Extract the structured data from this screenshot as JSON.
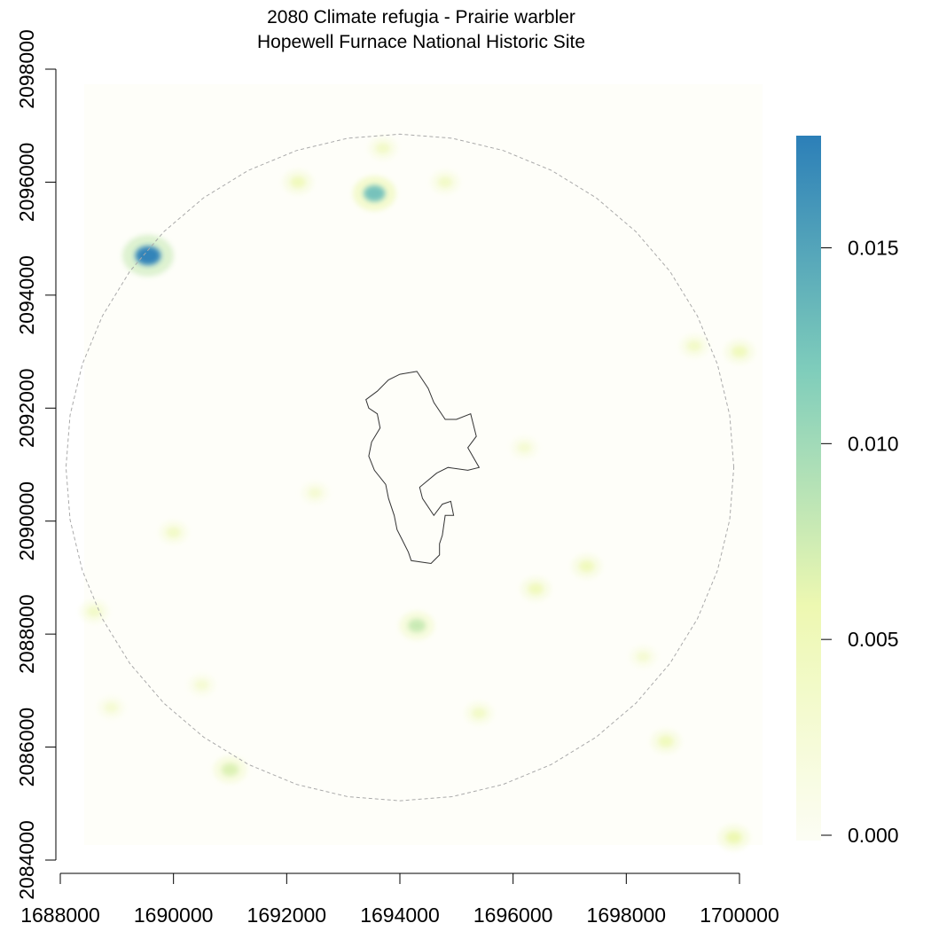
{
  "title": {
    "line1": "2080 Climate refugia - Prairie warbler",
    "line2": "Hopewell Furnace National Historic Site"
  },
  "map_data": {
    "type": "raster_map",
    "x_axis": {
      "ticks": [
        1688000,
        1690000,
        1692000,
        1694000,
        1696000,
        1698000,
        1700000
      ],
      "range": [
        1688000,
        1700000
      ]
    },
    "y_axis": {
      "ticks": [
        2084000,
        2086000,
        2088000,
        2090000,
        2092000,
        2094000,
        2096000,
        2098000
      ],
      "range": [
        2084000,
        2098000
      ]
    },
    "legend": {
      "ticks": [
        "0.000",
        "0.005",
        "0.010",
        "0.015"
      ],
      "value_range": [
        0,
        0.018
      ],
      "colors": [
        "#fcfdf4",
        "#edf8b1",
        "#7fcdbb",
        "#2c7fb8"
      ]
    },
    "hotspots": [
      {
        "x": 1689550,
        "y": 2094700,
        "value": 0.018
      },
      {
        "x": 1693550,
        "y": 2095800,
        "value": 0.013
      },
      {
        "x": 1694300,
        "y": 2088150,
        "value": 0.008
      },
      {
        "x": 1691000,
        "y": 2085600,
        "value": 0.007
      },
      {
        "x": 1692200,
        "y": 2096000,
        "value": 0.005
      },
      {
        "x": 1690000,
        "y": 2089800,
        "value": 0.004
      },
      {
        "x": 1696400,
        "y": 2088800,
        "value": 0.005
      },
      {
        "x": 1697300,
        "y": 2089200,
        "value": 0.005
      },
      {
        "x": 1698700,
        "y": 2086100,
        "value": 0.005
      },
      {
        "x": 1699900,
        "y": 2084400,
        "value": 0.006
      },
      {
        "x": 1688600,
        "y": 2088400,
        "value": 0.004
      },
      {
        "x": 1694800,
        "y": 2096000,
        "value": 0.004
      },
      {
        "x": 1695400,
        "y": 2086600,
        "value": 0.004
      },
      {
        "x": 1699200,
        "y": 2093100,
        "value": 0.004
      },
      {
        "x": 1700000,
        "y": 2093000,
        "value": 0.005
      },
      {
        "x": 1693700,
        "y": 2096600,
        "value": 0.004
      },
      {
        "x": 1690500,
        "y": 2087100,
        "value": 0.003
      },
      {
        "x": 1692500,
        "y": 2090500,
        "value": 0.003
      },
      {
        "x": 1696200,
        "y": 2091300,
        "value": 0.003
      },
      {
        "x": 1688900,
        "y": 2086700,
        "value": 0.003
      },
      {
        "x": 1698300,
        "y": 2087600,
        "value": 0.003
      }
    ],
    "boundary_polygon": [
      [
        1694300,
        2092650
      ],
      [
        1694000,
        2092600
      ],
      [
        1693800,
        2092500
      ],
      [
        1693600,
        2092300
      ],
      [
        1693400,
        2092150
      ],
      [
        1693450,
        2092000
      ],
      [
        1693600,
        2091900
      ],
      [
        1693650,
        2091650
      ],
      [
        1693500,
        2091400
      ],
      [
        1693450,
        2091150
      ],
      [
        1693550,
        2090900
      ],
      [
        1693750,
        2090650
      ],
      [
        1693800,
        2090400
      ],
      [
        1693900,
        2090100
      ],
      [
        1693950,
        2089850
      ],
      [
        1694050,
        2089650
      ],
      [
        1694150,
        2089450
      ],
      [
        1694200,
        2089300
      ],
      [
        1694550,
        2089250
      ],
      [
        1694700,
        2089400
      ],
      [
        1694700,
        2089600
      ],
      [
        1694750,
        2089750
      ],
      [
        1694800,
        2090100
      ],
      [
        1694950,
        2090100
      ],
      [
        1694900,
        2090350
      ],
      [
        1694750,
        2090300
      ],
      [
        1694600,
        2090100
      ],
      [
        1694400,
        2090400
      ],
      [
        1694350,
        2090600
      ],
      [
        1694650,
        2090850
      ],
      [
        1694850,
        2090950
      ],
      [
        1695200,
        2090900
      ],
      [
        1695400,
        2090950
      ],
      [
        1695200,
        2091300
      ],
      [
        1695350,
        2091500
      ],
      [
        1695250,
        2091900
      ],
      [
        1695000,
        2091800
      ],
      [
        1694800,
        2091800
      ],
      [
        1694600,
        2092100
      ],
      [
        1694500,
        2092350
      ],
      [
        1694300,
        2092650
      ]
    ],
    "buffer_circle": {
      "center_x": 1694000,
      "center_y": 2090950,
      "radius": 5900
    }
  }
}
